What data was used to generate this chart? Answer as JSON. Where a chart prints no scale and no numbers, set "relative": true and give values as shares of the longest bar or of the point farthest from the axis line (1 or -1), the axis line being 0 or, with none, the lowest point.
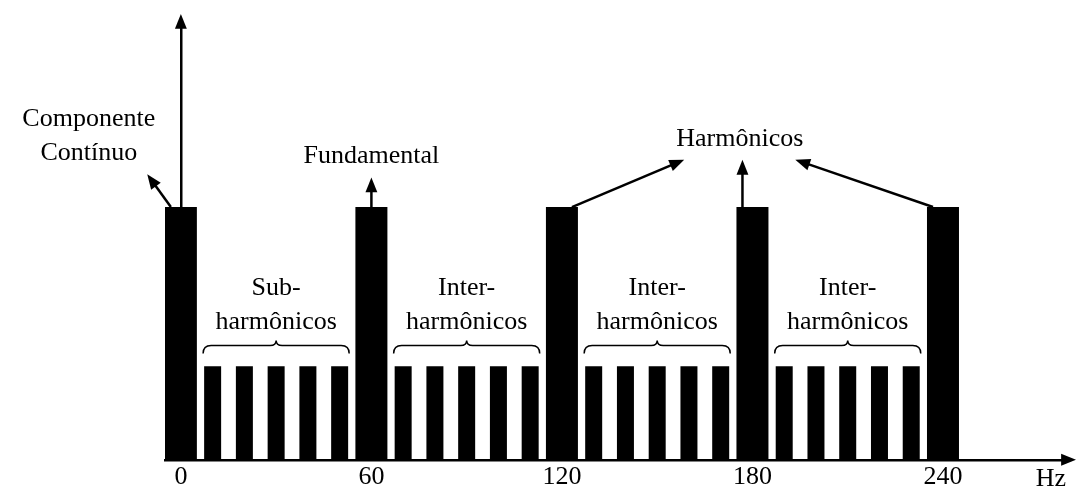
{
  "chart_data": {
    "type": "bar",
    "relative": true,
    "xlabel": "Hz",
    "xlim": [
      -5,
      280
    ],
    "xticks": [
      0,
      60,
      120,
      180,
      240
    ],
    "legend": false,
    "series": [
      {
        "color": "#000000",
        "x": [
          0,
          10,
          20,
          30,
          40,
          50,
          60,
          70,
          80,
          90,
          100,
          110,
          120,
          130,
          140,
          150,
          160,
          170,
          180,
          190,
          200,
          210,
          220,
          230,
          240
        ],
        "values": [
          1,
          0.37,
          0.37,
          0.37,
          0.37,
          0.37,
          1,
          0.37,
          0.37,
          0.37,
          0.37,
          0.37,
          1,
          0.37,
          0.37,
          0.37,
          0.37,
          0.37,
          1,
          0.37,
          0.37,
          0.37,
          0.37,
          0.37,
          1
        ]
      }
    ],
    "annotations": [
      "Componente Contínuo",
      "Fundamental",
      "Harmônicos",
      "Sub-harmônicos",
      "Inter-harmônicos",
      "Inter-harmônicos",
      "Inter-harmônicos"
    ]
  }
}
